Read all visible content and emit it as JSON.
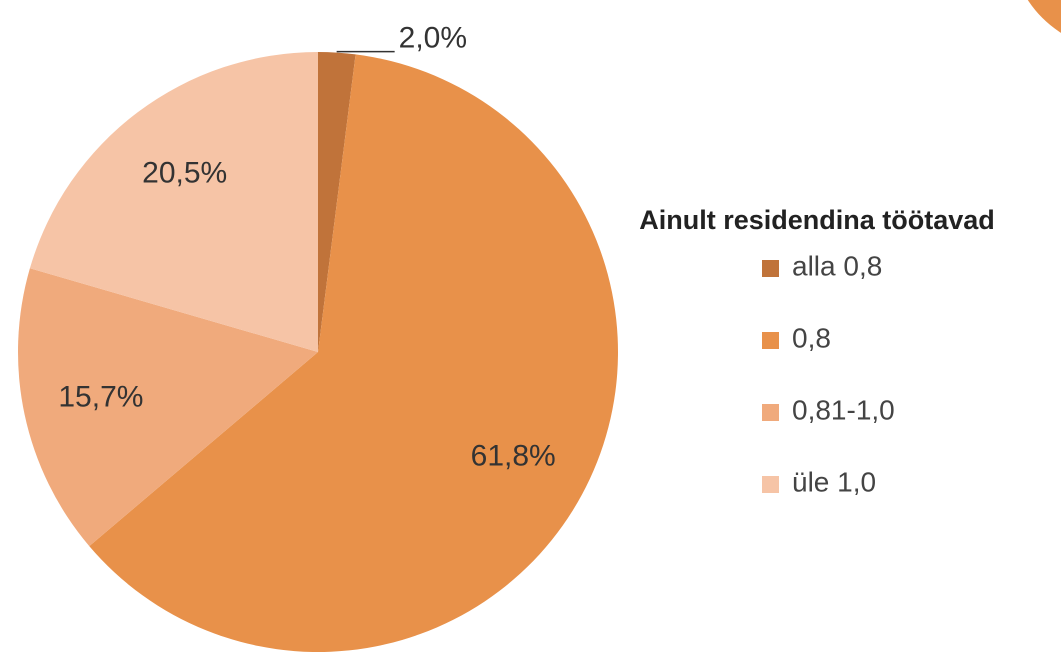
{
  "chart_data": {
    "type": "pie",
    "title": "Ainult residendina töötavad",
    "categories": [
      "alla 0,8",
      "0,8",
      "0,81-1,0",
      "üle 1,0"
    ],
    "values": [
      2.0,
      61.8,
      15.7,
      20.5
    ],
    "value_labels": [
      "2,0%",
      "61,8%",
      "15,7%",
      "20,5%"
    ],
    "colors": [
      "#c0733a",
      "#e8914a",
      "#f0aa7c",
      "#f6c4a6"
    ],
    "legend": "right"
  }
}
